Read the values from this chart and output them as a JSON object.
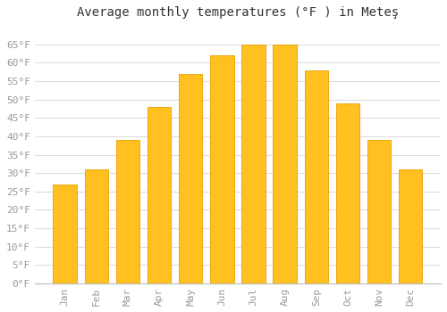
{
  "title": "Average monthly temperatures (°F ) in Meteş",
  "months": [
    "Jan",
    "Feb",
    "Mar",
    "Apr",
    "May",
    "Jun",
    "Jul",
    "Aug",
    "Sep",
    "Oct",
    "Nov",
    "Dec"
  ],
  "values": [
    27,
    31,
    39,
    48,
    57,
    62,
    65,
    65,
    58,
    49,
    39,
    31
  ],
  "bar_color": "#FFC020",
  "bar_edge_color": "#E8A000",
  "background_color": "#FFFFFF",
  "grid_color": "#DDDDDD",
  "ylim": [
    0,
    70
  ],
  "yticks": [
    0,
    5,
    10,
    15,
    20,
    25,
    30,
    35,
    40,
    45,
    50,
    55,
    60,
    65
  ],
  "title_fontsize": 10,
  "tick_fontsize": 8,
  "tick_color": "#999999",
  "font_family": "monospace",
  "title_color": "#333333"
}
